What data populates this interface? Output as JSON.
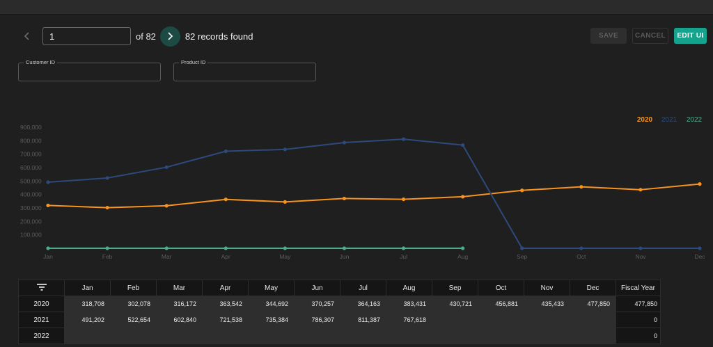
{
  "pager": {
    "page_value": "1",
    "of_text": "of 82",
    "records_text": "82 records found",
    "prev_icon": "chevron-left",
    "next_icon": "chevron-right"
  },
  "actions": {
    "save": "SAVE",
    "cancel": "CANCEL",
    "edit": "EDIT UI"
  },
  "filters": {
    "customer_label": "Customer ID",
    "customer_value": "",
    "product_label": "Product ID",
    "product_value": ""
  },
  "colors": {
    "accent": "#16a38d",
    "series_2020": "#f7931e",
    "series_2021": "#2d4a7c",
    "series_2022": "#4cae8c"
  },
  "chart_data": {
    "type": "line",
    "title": "",
    "xlabel": "",
    "ylabel": "",
    "categories": [
      "Jan",
      "Feb",
      "Mar",
      "Apr",
      "May",
      "Jun",
      "Jul",
      "Aug",
      "Sep",
      "Oct",
      "Nov",
      "Dec"
    ],
    "ylim": [
      0,
      900000
    ],
    "yticks": [
      "100,000",
      "200,000",
      "300,000",
      "400,000",
      "500,000",
      "600,000",
      "700,000",
      "800,000",
      "900,000"
    ],
    "legend_position": "top-right",
    "grid": false,
    "series": [
      {
        "name": "2020",
        "values": [
          318708,
          302078,
          316172,
          363542,
          344692,
          370257,
          364163,
          383431,
          430721,
          456881,
          435433,
          477850
        ]
      },
      {
        "name": "2021",
        "values": [
          491202,
          522654,
          602840,
          721538,
          735384,
          786307,
          811387,
          767618,
          0,
          0,
          0,
          0
        ]
      },
      {
        "name": "2022",
        "values": [
          0,
          0,
          0,
          0,
          0,
          0,
          0,
          0,
          null,
          null,
          null,
          null
        ]
      }
    ]
  },
  "table": {
    "filter_icon": "filter-icon",
    "headers": [
      "Jan",
      "Feb",
      "Mar",
      "Apr",
      "May",
      "Jun",
      "Jul",
      "Aug",
      "Sep",
      "Oct",
      "Nov",
      "Dec",
      "Fiscal Year"
    ],
    "rows": [
      {
        "year": "2020",
        "cells": [
          "318,708",
          "302,078",
          "316,172",
          "363,542",
          "344,692",
          "370,257",
          "364,163",
          "383,431",
          "430,721",
          "456,881",
          "435,433",
          "477,850",
          "477,850"
        ]
      },
      {
        "year": "2021",
        "cells": [
          "491,202",
          "522,654",
          "602,840",
          "721,538",
          "735,384",
          "786,307",
          "811,387",
          "767,618",
          "",
          "",
          "",
          "",
          "0"
        ]
      },
      {
        "year": "2022",
        "cells": [
          "",
          "",
          "",
          "",
          "",
          "",
          "",
          "",
          "",
          "",
          "",
          "",
          "0"
        ]
      }
    ]
  }
}
